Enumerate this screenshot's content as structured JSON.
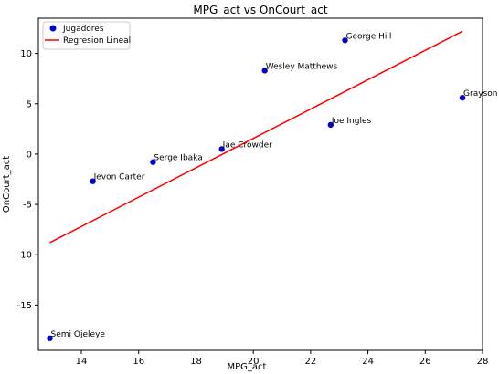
{
  "chart_data": {
    "type": "scatter",
    "title": "MPG_act vs OnCourt_act",
    "xlabel": "MPG_act",
    "ylabel": "OnCourt_act",
    "xlim": [
      12.5,
      28.0
    ],
    "ylim": [
      -19.5,
      13.5
    ],
    "xticks": [
      14,
      16,
      18,
      20,
      22,
      24,
      26,
      28
    ],
    "yticks": [
      -15,
      -10,
      -5,
      0,
      5,
      10
    ],
    "grid": false,
    "legend_position": "top-left",
    "points_series": {
      "name": "Jugadores",
      "color": "#0000cc",
      "points": [
        {
          "label": "George Hill",
          "x": 23.2,
          "y": 11.3
        },
        {
          "label": "Wesley Matthews",
          "x": 20.4,
          "y": 8.3
        },
        {
          "label": "Grayson Allen",
          "x": 27.3,
          "y": 5.6
        },
        {
          "label": "Joe Ingles",
          "x": 22.7,
          "y": 2.9
        },
        {
          "label": "Jae Crowder",
          "x": 18.9,
          "y": 0.5
        },
        {
          "label": "Serge Ibaka",
          "x": 16.5,
          "y": -0.8
        },
        {
          "label": "Jevon Carter",
          "x": 14.4,
          "y": -2.7
        },
        {
          "label": "Semi Ojeleye",
          "x": 12.9,
          "y": -18.3
        }
      ]
    },
    "line_series": {
      "name": "Regresion Lineal",
      "color": "#ff0000",
      "x": [
        12.9,
        27.3
      ],
      "y": [
        -8.8,
        12.2
      ]
    }
  }
}
